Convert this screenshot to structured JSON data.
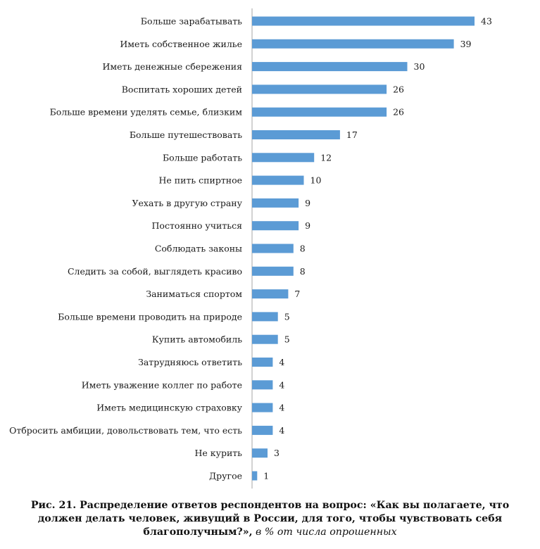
{
  "chart_data": {
    "type": "bar",
    "orientation": "horizontal",
    "categories": [
      "Больше зарабатывать",
      "Иметь собственное жилье",
      "Иметь денежные сбережения",
      "Воспитать хороших детей",
      "Больше времени уделять семье, близким",
      "Больше путешествовать",
      "Больше работать",
      "Не пить спиртное",
      "Уехать в другую страну",
      "Постоянно учиться",
      "Соблюдать законы",
      "Следить за собой, выглядеть красиво",
      "Заниматься спортом",
      "Больше времени проводить на природе",
      "Купить автомобиль",
      "Затрудняюсь ответить",
      "Иметь уважение коллег по работе",
      "Иметь медицинскую страховку",
      "Отбросить амбиции, довольствовать тем, что есть",
      "Не курить",
      "Другое"
    ],
    "values": [
      43,
      39,
      30,
      26,
      26,
      17,
      12,
      10,
      9,
      9,
      8,
      8,
      7,
      5,
      5,
      4,
      4,
      4,
      4,
      3,
      1
    ],
    "xlim": [
      0,
      43
    ],
    "grid": false,
    "legend": "none",
    "bar_color": "#5b9bd5",
    "data_labels": true
  },
  "caption": {
    "bold": "Рис. 21. Распределение ответов респондентов на вопрос: «Как вы полагаете, что должен делать человек, живущий в России, для того, чтобы чувствовать себя благополучным?»,",
    "italic": " в % от числа опрошенных"
  }
}
